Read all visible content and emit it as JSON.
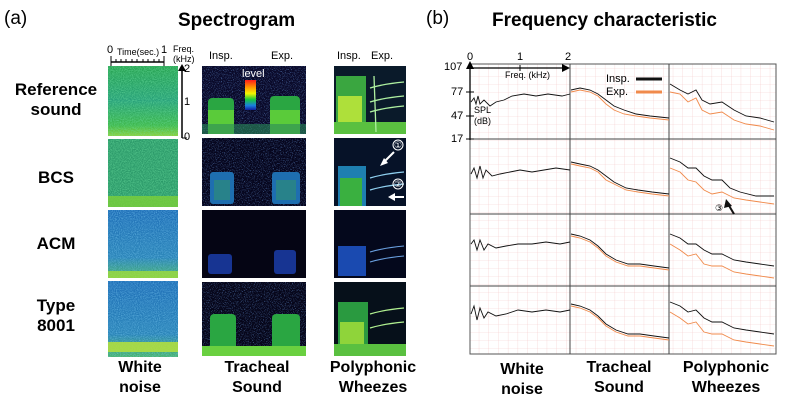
{
  "panel_a": {
    "letter": "(a)",
    "title": "Spectrogram",
    "time_label": "Time(sec.)",
    "time_tick_start": "0",
    "time_tick_end": "1",
    "freq_label_line1": "Freq.",
    "freq_label_line2": "(kHz)",
    "freq_ticks": [
      "2",
      "1",
      "0"
    ],
    "level_label": "level",
    "insp_label": "Insp.",
    "exp_label": "Exp.",
    "row_labels": [
      [
        "Reference",
        "sound"
      ],
      [
        "BCS"
      ],
      [
        "ACM"
      ],
      [
        "Type",
        "8001"
      ]
    ],
    "column_labels": [
      [
        "White",
        "noise"
      ],
      [
        "Tracheal",
        "Sound"
      ],
      [
        "Polyphonic",
        "Wheezes"
      ]
    ],
    "marker_1": "①",
    "marker_2": "②"
  },
  "panel_b": {
    "letter": "(b)",
    "title": "Frequency characteristic",
    "x_ticks": [
      "0",
      "1",
      "2"
    ],
    "x_axis_label": "Freq. (kHz)",
    "y_ticks": [
      "107",
      "77",
      "47",
      "17"
    ],
    "y_axis_label_line1": "SPL",
    "y_axis_label_line2": "(dB)",
    "legend_insp": "Insp.",
    "legend_exp": "Exp.",
    "marker_3": "③",
    "insp_color": "#111111",
    "exp_color": "#f08a4b"
  }
}
